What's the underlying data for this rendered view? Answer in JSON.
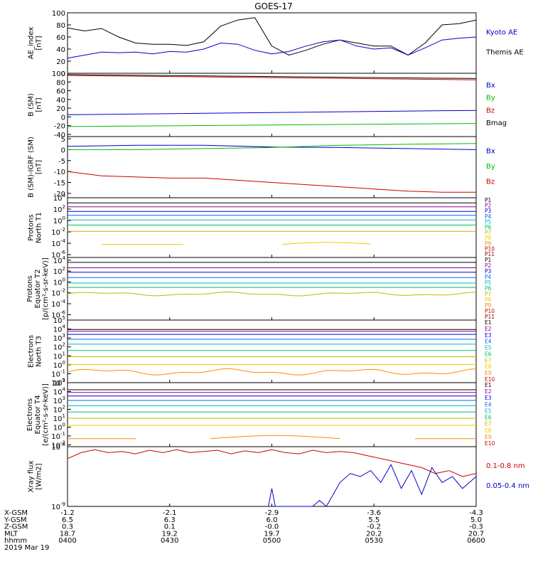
{
  "title": "GOES-17",
  "colors": {
    "black": "#000000",
    "blue": "#0000cc",
    "green": "#00bb00",
    "red": "#cc0000",
    "p_channels": [
      "#000000",
      "#880088",
      "#0000cc",
      "#0066ff",
      "#00bbbb",
      "#00bb66",
      "#bbbb00",
      "#eecc00",
      "#ff8800",
      "#cc0000",
      "#880000"
    ],
    "e_channels": [
      "#000000",
      "#880088",
      "#0000cc",
      "#0066ff",
      "#00bbbb",
      "#00bb66",
      "#bbbb00",
      "#eecc00",
      "#ff8800",
      "#cc0000"
    ]
  },
  "chart_data": [
    {
      "id": "ae",
      "type": "line",
      "ylabel": [
        "AE_index",
        "[nT]"
      ],
      "ylim": [
        0,
        100
      ],
      "yticks": [
        "0",
        "20",
        "40",
        "60",
        "80",
        "100"
      ],
      "legend": [
        {
          "text": "Kyoto AE",
          "color": "#0000cc"
        },
        {
          "text": "Themis AE",
          "color": "#000000"
        }
      ],
      "series": [
        {
          "name": "Themis AE",
          "color": "#000000",
          "x": [
            0,
            5,
            10,
            15,
            20,
            25,
            30,
            35,
            40,
            45,
            50,
            55,
            60,
            65,
            70,
            75,
            80,
            85,
            90,
            95,
            100,
            105,
            110,
            115,
            120
          ],
          "y": [
            75,
            70,
            74,
            60,
            50,
            48,
            48,
            46,
            52,
            78,
            88,
            92,
            45,
            30,
            38,
            48,
            55,
            50,
            45,
            45,
            30,
            50,
            80,
            82,
            88
          ]
        },
        {
          "name": "Kyoto AE",
          "color": "#0000cc",
          "x": [
            0,
            5,
            10,
            15,
            20,
            25,
            30,
            35,
            40,
            45,
            50,
            55,
            60,
            65,
            70,
            75,
            80,
            85,
            90,
            95,
            100,
            105,
            110,
            115,
            120
          ],
          "y": [
            25,
            30,
            35,
            34,
            35,
            32,
            36,
            35,
            40,
            50,
            48,
            38,
            32,
            36,
            45,
            52,
            55,
            45,
            40,
            42,
            30,
            42,
            55,
            58,
            60
          ]
        }
      ]
    },
    {
      "id": "bsm",
      "type": "line",
      "ylabel": [
        "B (SM)",
        "[nT]"
      ],
      "ylim": [
        -45,
        100
      ],
      "yticks": [
        "-40",
        "-20",
        "0",
        "20",
        "40",
        "60",
        "80",
        "100"
      ],
      "ytick_values": [
        -40,
        -20,
        0,
        20,
        40,
        60,
        80,
        100
      ],
      "legend": [
        {
          "text": "Bx",
          "color": "#0000cc"
        },
        {
          "text": "By",
          "color": "#00bb00"
        },
        {
          "text": "Bz",
          "color": "#cc0000"
        },
        {
          "text": "Bmag",
          "color": "#000000"
        }
      ],
      "series": [
        {
          "name": "Bx",
          "color": "#0000cc",
          "x": [
            0,
            120
          ],
          "y": [
            5,
            15
          ]
        },
        {
          "name": "By",
          "color": "#00bb00",
          "x": [
            0,
            120
          ],
          "y": [
            -22,
            -15
          ]
        },
        {
          "name": "Bz",
          "color": "#cc0000",
          "x": [
            0,
            120
          ],
          "y": [
            95,
            85
          ]
        },
        {
          "name": "Bmag",
          "color": "#000000",
          "x": [
            0,
            120
          ],
          "y": [
            97,
            88
          ]
        }
      ]
    },
    {
      "id": "bigrf",
      "type": "line",
      "ylabel": [
        "B (SM)-IGRF (SM)",
        "[nT]"
      ],
      "ylim": [
        -22,
        6
      ],
      "yticks": [
        "5",
        "0",
        "-5",
        "-10",
        "-15",
        "-20"
      ],
      "ytick_values": [
        5,
        0,
        -5,
        -10,
        -15,
        -20
      ],
      "legend": [
        {
          "text": "Bx",
          "color": "#0000cc"
        },
        {
          "text": "By",
          "color": "#00bb00"
        },
        {
          "text": "Bz",
          "color": "#cc0000"
        }
      ],
      "series": [
        {
          "name": "Bx",
          "color": "#0000cc",
          "x": [
            0,
            20,
            40,
            60,
            80,
            100,
            120
          ],
          "y": [
            1.5,
            2,
            2,
            1.2,
            1,
            0.5,
            0
          ]
        },
        {
          "name": "By",
          "color": "#00bb00",
          "x": [
            0,
            20,
            40,
            60,
            80,
            100,
            120
          ],
          "y": [
            0,
            0,
            0.5,
            1,
            2,
            2.5,
            2.8
          ]
        },
        {
          "name": "Bz",
          "color": "#cc0000",
          "x": [
            0,
            5,
            10,
            20,
            30,
            40,
            50,
            60,
            70,
            80,
            90,
            100,
            110,
            120
          ],
          "y": [
            -10,
            -11,
            -12,
            -12.5,
            -13,
            -13,
            -14,
            -15,
            -16,
            -17,
            -18,
            -19,
            -19.5,
            -19.5
          ]
        }
      ]
    },
    {
      "id": "p1",
      "type": "line",
      "ylog": true,
      "ylabel": [
        "Protons",
        "North T1"
      ],
      "ylim_log10": [
        -6.5,
        4
      ],
      "yticks": [
        {
          "exp": 4
        },
        {
          "exp": 2
        },
        {
          "exp": 0
        },
        {
          "exp": -2
        },
        {
          "exp": -4
        },
        {
          "exp": -6
        }
      ],
      "legend": [
        "P1",
        "P2",
        "P3",
        "P4",
        "P5",
        "P6",
        "P7",
        "P8",
        "P9",
        "P10",
        "P11"
      ],
      "series_log10": [
        {
          "name": "P1",
          "y": 3.1
        },
        {
          "name": "P2",
          "y": 2.4
        },
        {
          "name": "P3",
          "y": 1.6
        },
        {
          "name": "P4",
          "y": 0.9
        },
        {
          "name": "P5",
          "y": 0.1
        },
        {
          "name": "P6",
          "y": -0.8
        },
        {
          "name": "P7",
          "y": -1.9
        },
        {
          "name": "P8",
          "y": -4.2,
          "segments": [
            [
              10,
              35
            ],
            [
              63,
              90
            ]
          ]
        }
      ]
    },
    {
      "id": "p2",
      "type": "line",
      "ylog": true,
      "ylabel": [
        "Protons",
        "Equator T2",
        "[p/(cm²-s-sr-keV)]"
      ],
      "ylim_log10": [
        -7,
        4.5
      ],
      "yticks": [
        {
          "exp": 4
        },
        {
          "exp": 2
        },
        {
          "exp": 0
        },
        {
          "exp": -2
        },
        {
          "exp": -4
        },
        {
          "exp": -6
        }
      ],
      "legend": [
        "P1",
        "P2",
        "P3",
        "P4",
        "P5",
        "P6",
        "P7",
        "P8",
        "P9",
        "P10",
        "P11"
      ],
      "series_log10": [
        {
          "name": "P1",
          "y": 3.6
        },
        {
          "name": "P2",
          "y": 2.6
        },
        {
          "name": "P3",
          "y": 1.8
        },
        {
          "name": "P4",
          "y": 0.8
        },
        {
          "name": "P5",
          "y": -0.2
        },
        {
          "name": "P6",
          "y": -1.0
        },
        {
          "name": "P7",
          "y": -2.2,
          "wobble": true
        }
      ]
    },
    {
      "id": "e1",
      "type": "line",
      "ylog": true,
      "ylabel": [
        "Electrons",
        "North T3"
      ],
      "ylim_log10": [
        -2,
        5
      ],
      "yticks": [
        {
          "exp": 5
        },
        {
          "exp": 4
        },
        {
          "exp": 3
        },
        {
          "exp": 2
        },
        {
          "exp": 1
        },
        {
          "exp": 0
        },
        {
          "exp": -1
        },
        {
          "exp": -2
        }
      ],
      "legend": [
        "E1",
        "E2",
        "E3",
        "E4",
        "E5",
        "E6",
        "E7",
        "E8",
        "E9",
        "E10"
      ],
      "series_log10": [
        {
          "name": "E1",
          "y": 3.95
        },
        {
          "name": "E2",
          "y": 3.75
        },
        {
          "name": "E3",
          "y": 3.4
        },
        {
          "name": "E4",
          "y": 2.85
        },
        {
          "name": "E5",
          "y": 2.3
        },
        {
          "name": "E6",
          "y": 1.6
        },
        {
          "name": "E7",
          "y": 0.9
        },
        {
          "name": "E8",
          "y": 0.05
        },
        {
          "name": "E9",
          "y": -0.8,
          "wobble": true
        }
      ]
    },
    {
      "id": "e2",
      "type": "line",
      "ylog": true,
      "ylabel": [
        "Electrons",
        "Equator T4",
        "[e/(cm²-s-sr-keV)]"
      ],
      "ylim_log10": [
        -2.2,
        5
      ],
      "yticks": [
        {
          "exp": 5
        },
        {
          "exp": 4
        },
        {
          "exp": 3
        },
        {
          "exp": 2
        },
        {
          "exp": 1
        },
        {
          "exp": 0
        },
        {
          "exp": -1
        },
        {
          "exp": -2
        }
      ],
      "legend": [
        "E1",
        "E2",
        "E3",
        "E4",
        "E5",
        "E6",
        "E7",
        "E8",
        "E9",
        "E10"
      ],
      "series_log10": [
        {
          "name": "E1",
          "y": 4.2
        },
        {
          "name": "E2",
          "y": 3.9
        },
        {
          "name": "E3",
          "y": 3.5
        },
        {
          "name": "E4",
          "y": 3.0
        },
        {
          "name": "E5",
          "y": 2.4
        },
        {
          "name": "E6",
          "y": 1.7
        },
        {
          "name": "E7",
          "y": 1.0
        },
        {
          "name": "E8",
          "y": 0.2
        },
        {
          "name": "E9",
          "y": -1.3,
          "segments": [
            [
              0,
              20
            ],
            [
              42,
              80
            ],
            [
              102,
              120
            ]
          ]
        }
      ]
    },
    {
      "id": "xray",
      "type": "line",
      "ylog": true,
      "ylabel": [
        "Xray flux",
        "[W/m2]"
      ],
      "ylim_log10": [
        -9,
        -8
      ],
      "yticks": [
        {
          "exp": -8
        },
        {
          "exp": -9
        }
      ],
      "legend": [
        {
          "text": "0.1-0.8 nm",
          "color": "#cc0000"
        },
        {
          "text": "0.05-0.4 nm",
          "color": "#0000cc"
        }
      ],
      "series": [
        {
          "name": "0.1-0.8 nm",
          "color": "#cc0000",
          "x": [
            0,
            4,
            8,
            12,
            16,
            20,
            24,
            28,
            32,
            36,
            40,
            44,
            48,
            52,
            56,
            60,
            64,
            68,
            72,
            76,
            80,
            84,
            88,
            92,
            96,
            100,
            104,
            108,
            112,
            116,
            120
          ],
          "y": [
            -8.2,
            -8.1,
            -8.05,
            -8.1,
            -8.08,
            -8.12,
            -8.06,
            -8.1,
            -8.05,
            -8.1,
            -8.08,
            -8.06,
            -8.12,
            -8.07,
            -8.1,
            -8.05,
            -8.1,
            -8.12,
            -8.06,
            -8.1,
            -8.08,
            -8.1,
            -8.15,
            -8.2,
            -8.25,
            -8.3,
            -8.35,
            -8.45,
            -8.4,
            -8.5,
            -8.45
          ]
        },
        {
          "name": "0.05-0.4 nm",
          "color": "#0000cc",
          "x": [
            59,
            60,
            61,
            62,
            63,
            72,
            74,
            76,
            78,
            80,
            83,
            86,
            89,
            92,
            95,
            98,
            101,
            104,
            107,
            110,
            113,
            116,
            118,
            120
          ],
          "y": [
            -9,
            -8.7,
            -9,
            -9,
            -9,
            -9,
            -8.9,
            -9,
            -8.8,
            -8.6,
            -8.45,
            -8.5,
            -8.4,
            -8.6,
            -8.3,
            -8.7,
            -8.4,
            -8.8,
            -8.35,
            -8.6,
            -8.5,
            -8.7,
            -8.6,
            -8.5
          ]
        }
      ]
    }
  ],
  "x_axis": {
    "row_labels": [
      "X-GSM",
      "Y-GSM",
      "Z-GSM",
      "MLT",
      "hhmm",
      "2019 Mar 19"
    ],
    "ticks": [
      {
        "minutes": 0,
        "values": [
          "-1.2",
          "6.5",
          "0.3",
          "18.7",
          "0400"
        ]
      },
      {
        "minutes": 30,
        "values": [
          "-2.1",
          "6.3",
          "0.1",
          "19.2",
          "0430"
        ]
      },
      {
        "minutes": 60,
        "values": [
          "-2.9",
          "6.0",
          "-0.0",
          "19.7",
          "0500"
        ]
      },
      {
        "minutes": 90,
        "values": [
          "-3.6",
          "5.5",
          "-0.2",
          "20.2",
          "0530"
        ]
      },
      {
        "minutes": 120,
        "values": [
          "-4.3",
          "5.0",
          "-0.3",
          "20.7",
          "0600"
        ]
      }
    ]
  }
}
